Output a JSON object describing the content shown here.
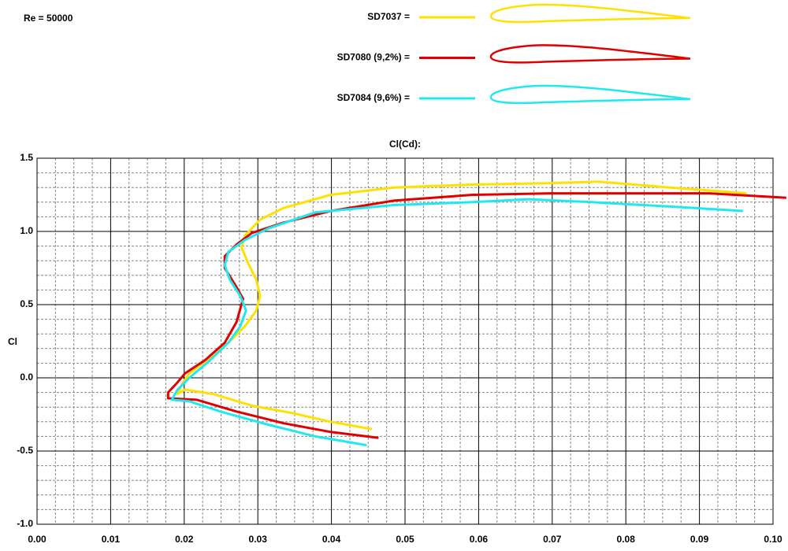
{
  "chart_data": {
    "type": "line",
    "title": "Cl(Cd):",
    "annotation": "Re = 50000",
    "y_label": "Cl",
    "legend": "top",
    "grid": true,
    "minor_grid": true,
    "xlim": [
      0,
      0.1
    ],
    "ylim": [
      -1.0,
      1.5
    ],
    "xticks": [
      {
        "value": 0,
        "label": "0.00"
      },
      0.01,
      0.02,
      0.03,
      0.04,
      0.05,
      0.06,
      0.07,
      0.08,
      0.09,
      {
        "value": 0.1,
        "label": "0.10"
      }
    ],
    "yticks": [
      {
        "value": -1.0,
        "label": "-1.0"
      },
      -0.5,
      {
        "value": 0,
        "label": "0.0"
      },
      0.5,
      {
        "value": 1.0,
        "label": "1.0"
      },
      1.5
    ],
    "series": [
      {
        "name": "SD7037 =",
        "color": "#ffe000",
        "x": [
          0.0455,
          0.0399,
          0.0346,
          0.0292,
          0.0239,
          0.0201,
          0.0191,
          0.0196,
          0.0207,
          0.0233,
          0.026,
          0.0282,
          0.0298,
          0.0303,
          0.0298,
          0.0287,
          0.0278,
          0.0282,
          0.0303,
          0.0335,
          0.0399,
          0.0485,
          0.0592,
          0.0699,
          0.0763,
          0.086,
          0.0964
        ],
        "values": [
          -0.35,
          -0.3,
          -0.24,
          -0.19,
          -0.11,
          -0.08,
          -0.11,
          -0.05,
          0.03,
          0.13,
          0.24,
          0.35,
          0.46,
          0.56,
          0.67,
          0.78,
          0.89,
          0.97,
          1.08,
          1.16,
          1.25,
          1.3,
          1.32,
          1.33,
          1.34,
          1.3,
          1.26
        ]
      },
      {
        "name": "SD7080 (9,2%) =",
        "color": "#e00000",
        "x": [
          0.0464,
          0.0399,
          0.0335,
          0.0271,
          0.0217,
          0.0178,
          0.0178,
          0.0191,
          0.0201,
          0.0228,
          0.0255,
          0.0271,
          0.028,
          0.0271,
          0.0255,
          0.0255,
          0.0271,
          0.0292,
          0.0335,
          0.0399,
          0.0485,
          0.0592,
          0.0699,
          0.0806,
          0.0913,
          0.1018
        ],
        "values": [
          -0.41,
          -0.37,
          -0.31,
          -0.23,
          -0.15,
          -0.14,
          -0.1,
          -0.03,
          0.03,
          0.12,
          0.24,
          0.38,
          0.54,
          0.62,
          0.75,
          0.83,
          0.91,
          0.99,
          1.06,
          1.14,
          1.21,
          1.25,
          1.26,
          1.26,
          1.26,
          1.23
        ]
      },
      {
        "name": "SD7084 (9,6%) =",
        "color": "#20e8f0",
        "x": [
          0.0448,
          0.0378,
          0.0314,
          0.0249,
          0.0207,
          0.0183,
          0.0191,
          0.0207,
          0.0233,
          0.026,
          0.0276,
          0.0284,
          0.0276,
          0.0262,
          0.0255,
          0.026,
          0.0282,
          0.0314,
          0.0378,
          0.0485,
          0.0592,
          0.0667,
          0.0753,
          0.086,
          0.0959
        ],
        "values": [
          -0.46,
          -0.4,
          -0.32,
          -0.23,
          -0.16,
          -0.15,
          -0.08,
          0.0,
          0.11,
          0.24,
          0.35,
          0.46,
          0.56,
          0.67,
          0.77,
          0.86,
          0.94,
          1.02,
          1.13,
          1.18,
          1.2,
          1.22,
          1.2,
          1.17,
          1.14
        ]
      }
    ]
  }
}
